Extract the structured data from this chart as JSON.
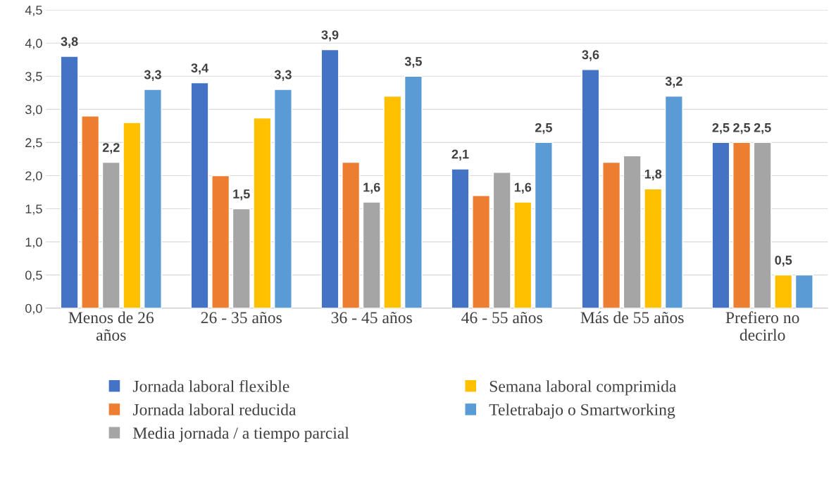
{
  "chart_data": {
    "type": "bar",
    "categories": [
      "Menos de 26\naños",
      "26 - 35 años",
      "36 - 45 años",
      "46 - 55 años",
      "Más de 55 años",
      "Prefiero no\ndecirlo"
    ],
    "series": [
      {
        "name": "Jornada laboral flexible",
        "color": "#4472c4",
        "values": [
          3.8,
          3.4,
          3.9,
          2.1,
          3.6,
          2.5
        ],
        "value_labels": [
          "3,8",
          "3,4",
          "3,9",
          "2,1",
          "3,6",
          "2,5"
        ]
      },
      {
        "name": "Jornada laboral reducida",
        "color": "#ed7d31",
        "values": [
          2.9,
          2.0,
          2.2,
          1.7,
          2.2,
          2.5
        ],
        "value_labels": [
          null,
          null,
          null,
          null,
          null,
          "2,5"
        ]
      },
      {
        "name": "Media jornada / a tiempo parcial",
        "color": "#a5a5a5",
        "values": [
          2.2,
          1.5,
          1.6,
          2.05,
          2.3,
          2.5
        ],
        "value_labels": [
          "2,2",
          "1,5",
          "1,6",
          null,
          null,
          "2,5"
        ]
      },
      {
        "name": "Semana laboral comprimida",
        "color": "#ffc000",
        "values": [
          2.8,
          2.87,
          3.2,
          1.6,
          1.8,
          0.5
        ],
        "value_labels": [
          null,
          null,
          null,
          "1,6",
          "1,8",
          "0,5"
        ]
      },
      {
        "name": "Teletrabajo o Smartworking",
        "color": "#5b9bd5",
        "values": [
          3.3,
          3.3,
          3.5,
          2.5,
          3.2,
          0.5
        ],
        "value_labels": [
          "3,3",
          "3,3",
          "3,5",
          "2,5",
          "3,2",
          null
        ]
      }
    ],
    "ylim": [
      0,
      4.5
    ],
    "yticks": [
      {
        "value": 0,
        "label": "0,0"
      },
      {
        "value": 0.5,
        "label": "0,5"
      },
      {
        "value": 1,
        "label": "1,0"
      },
      {
        "value": 1.5,
        "label": "1,5"
      },
      {
        "value": 2,
        "label": "2,0"
      },
      {
        "value": 2.5,
        "label": "2,5"
      },
      {
        "value": 3,
        "label": "3,0"
      },
      {
        "value": 3.5,
        "label": "3,5"
      },
      {
        "value": 4,
        "label": "4,0"
      },
      {
        "value": 4.5,
        "label": "4,5"
      }
    ],
    "grid": "y",
    "legend": "bottom"
  }
}
